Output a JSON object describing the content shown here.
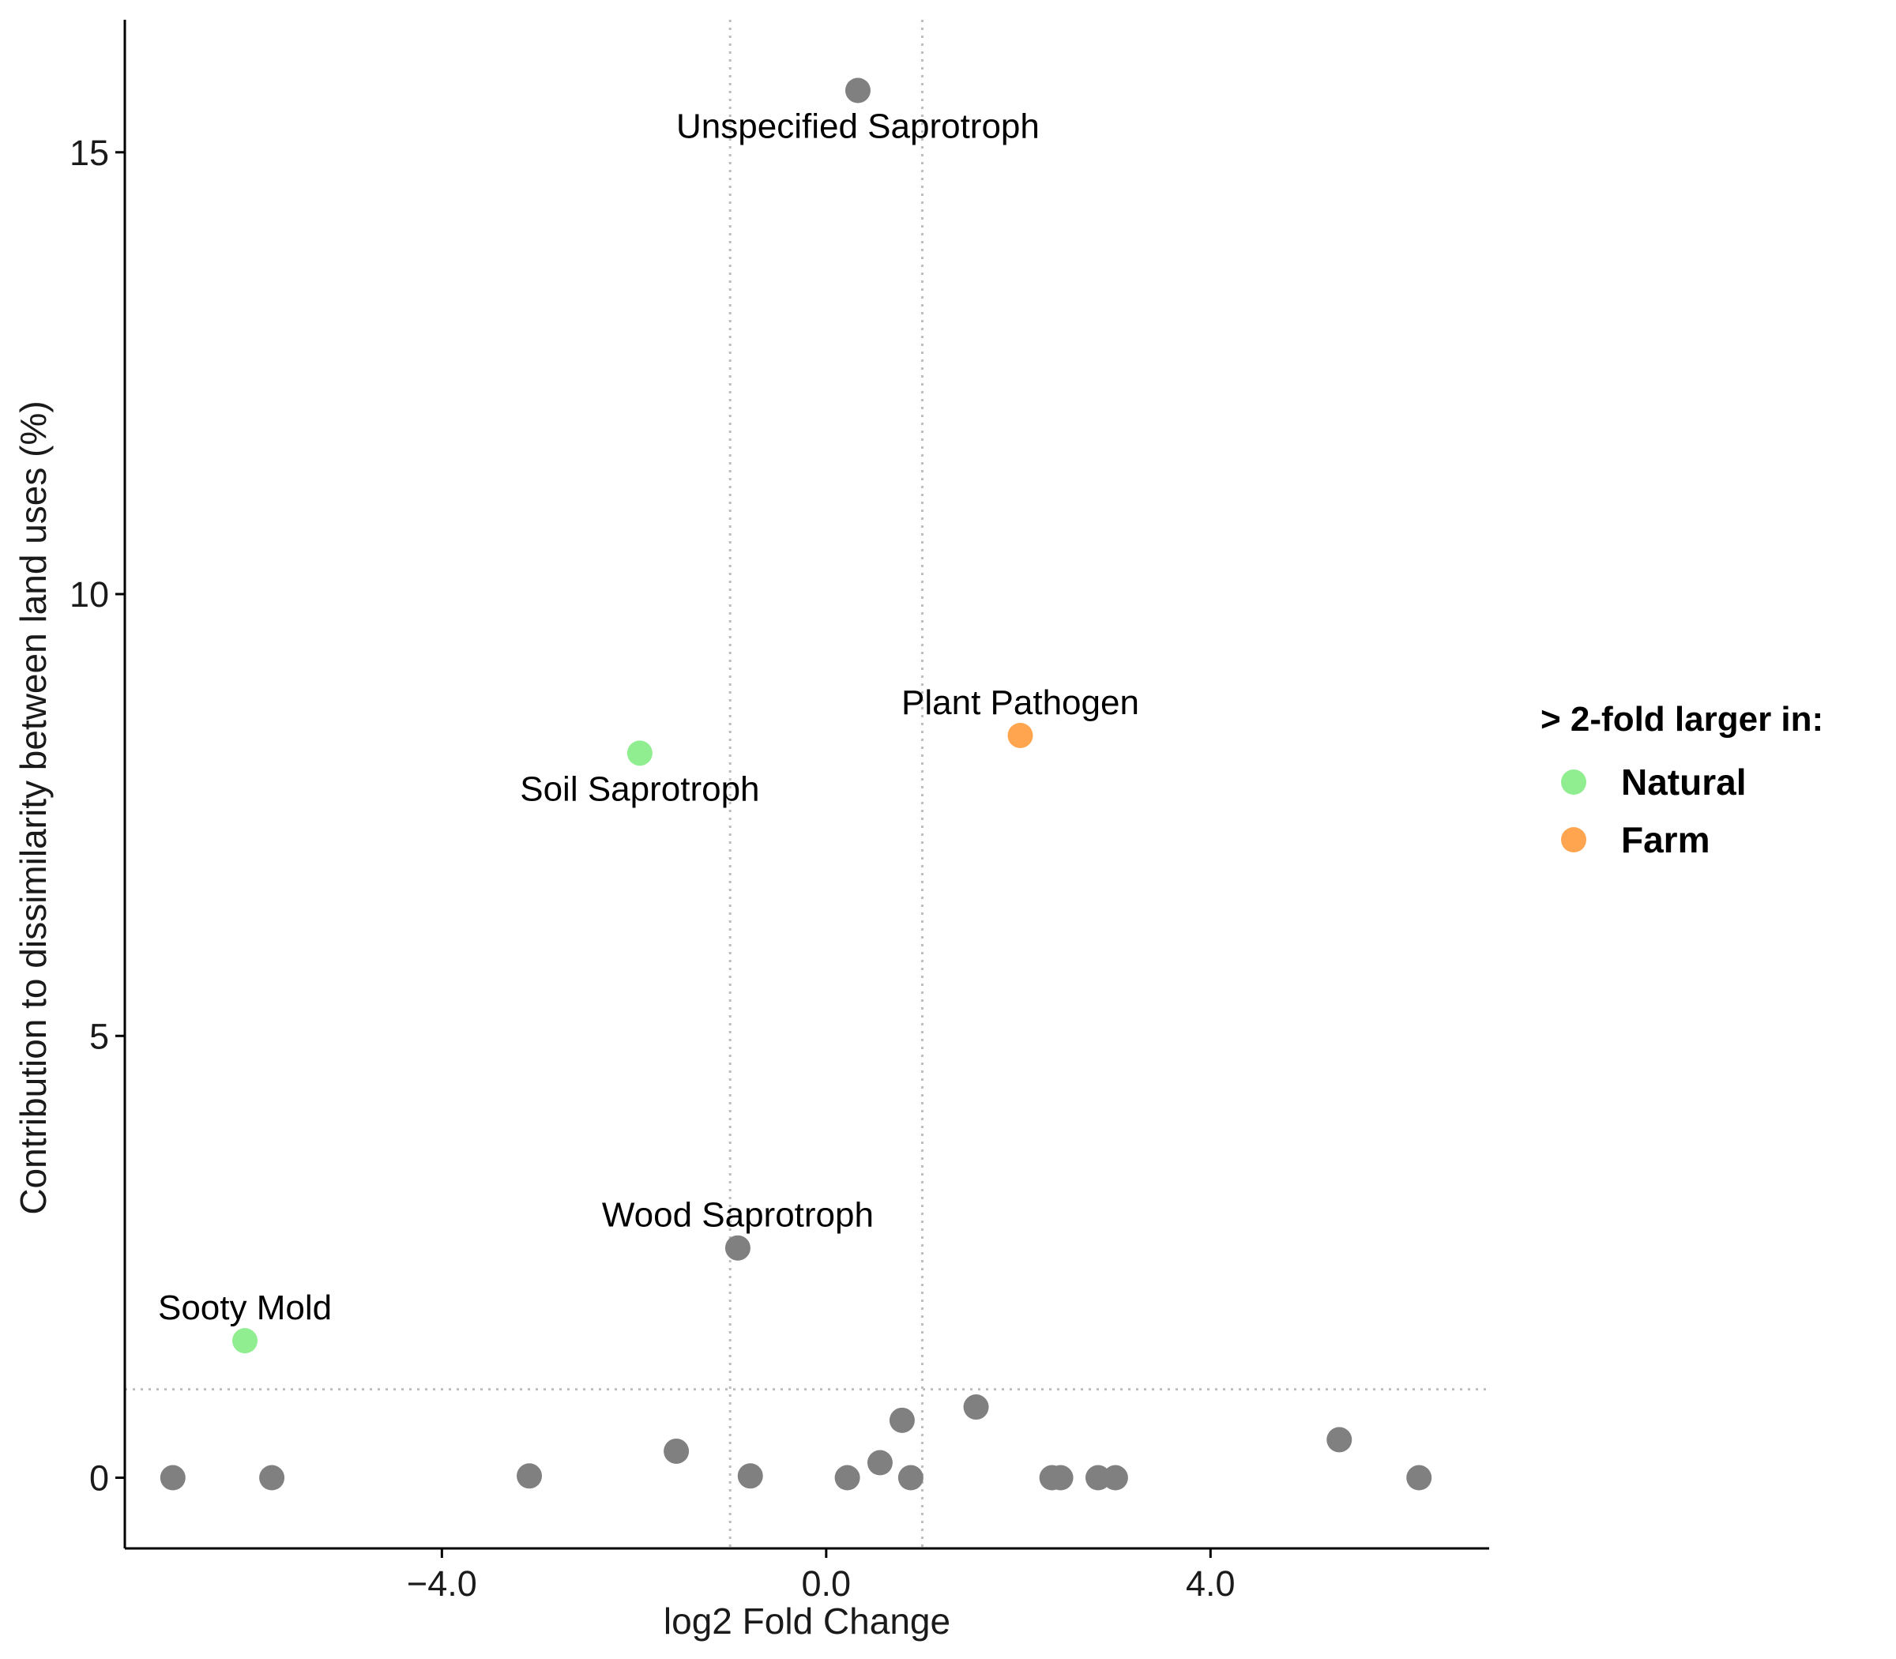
{
  "chart_data": {
    "type": "scatter",
    "title": "",
    "xlabel": "log2 Fold Change",
    "ylabel": "Contribution to dissimilarity between land uses (%)",
    "xlim": [
      -7.3,
      6.9
    ],
    "ylim": [
      -0.8,
      16.5
    ],
    "x_ticks": [
      -4.0,
      0.0,
      4.0
    ],
    "x_tick_labels": [
      "−4.0",
      "0.0",
      "4.0"
    ],
    "y_ticks": [
      0,
      5,
      10,
      15
    ],
    "y_tick_labels": [
      "0",
      "5",
      "10",
      "15"
    ],
    "grid": false,
    "reference_lines": {
      "vertical_x": [
        -1,
        1
      ],
      "horizontal_y": [
        1
      ],
      "style": "dotted",
      "color": "#bdbdbd"
    },
    "legend": {
      "title": "> 2-fold larger in:",
      "position": "right",
      "entries": [
        {
          "label": "Natural",
          "color": "#90ee90"
        },
        {
          "label": "Farm",
          "color": "#ffa54f"
        }
      ]
    },
    "colors": {
      "other": "#808080",
      "Natural": "#90ee90",
      "Farm": "#ffa54f"
    },
    "points": [
      {
        "x": 0.33,
        "y": 15.7,
        "group": "other",
        "label": "Unspecified Saprotroph",
        "label_pos": "below"
      },
      {
        "x": 2.02,
        "y": 8.4,
        "group": "Farm",
        "label": "Plant Pathogen",
        "label_pos": "above"
      },
      {
        "x": -1.94,
        "y": 8.2,
        "group": "Natural",
        "label": "Soil Saprotroph",
        "label_pos": "below"
      },
      {
        "x": -0.92,
        "y": 2.6,
        "group": "other",
        "label": "Wood Saprotroph",
        "label_pos": "above"
      },
      {
        "x": -6.05,
        "y": 1.55,
        "group": "Natural",
        "label": "Sooty Mold",
        "label_pos": "above"
      },
      {
        "x": -6.8,
        "y": 0.0,
        "group": "other"
      },
      {
        "x": -5.77,
        "y": 0.0,
        "group": "other"
      },
      {
        "x": -3.09,
        "y": 0.02,
        "group": "other"
      },
      {
        "x": -1.56,
        "y": 0.3,
        "group": "other"
      },
      {
        "x": -0.79,
        "y": 0.02,
        "group": "other"
      },
      {
        "x": 0.22,
        "y": 0.0,
        "group": "other"
      },
      {
        "x": 0.56,
        "y": 0.17,
        "group": "other"
      },
      {
        "x": 0.79,
        "y": 0.65,
        "group": "other"
      },
      {
        "x": 0.88,
        "y": 0.0,
        "group": "other"
      },
      {
        "x": 1.56,
        "y": 0.8,
        "group": "other"
      },
      {
        "x": 2.35,
        "y": 0.0,
        "group": "other"
      },
      {
        "x": 2.44,
        "y": 0.0,
        "group": "other"
      },
      {
        "x": 2.83,
        "y": 0.0,
        "group": "other"
      },
      {
        "x": 3.01,
        "y": 0.0,
        "group": "other"
      },
      {
        "x": 5.34,
        "y": 0.43,
        "group": "other"
      },
      {
        "x": 6.17,
        "y": 0.0,
        "group": "other"
      }
    ]
  }
}
